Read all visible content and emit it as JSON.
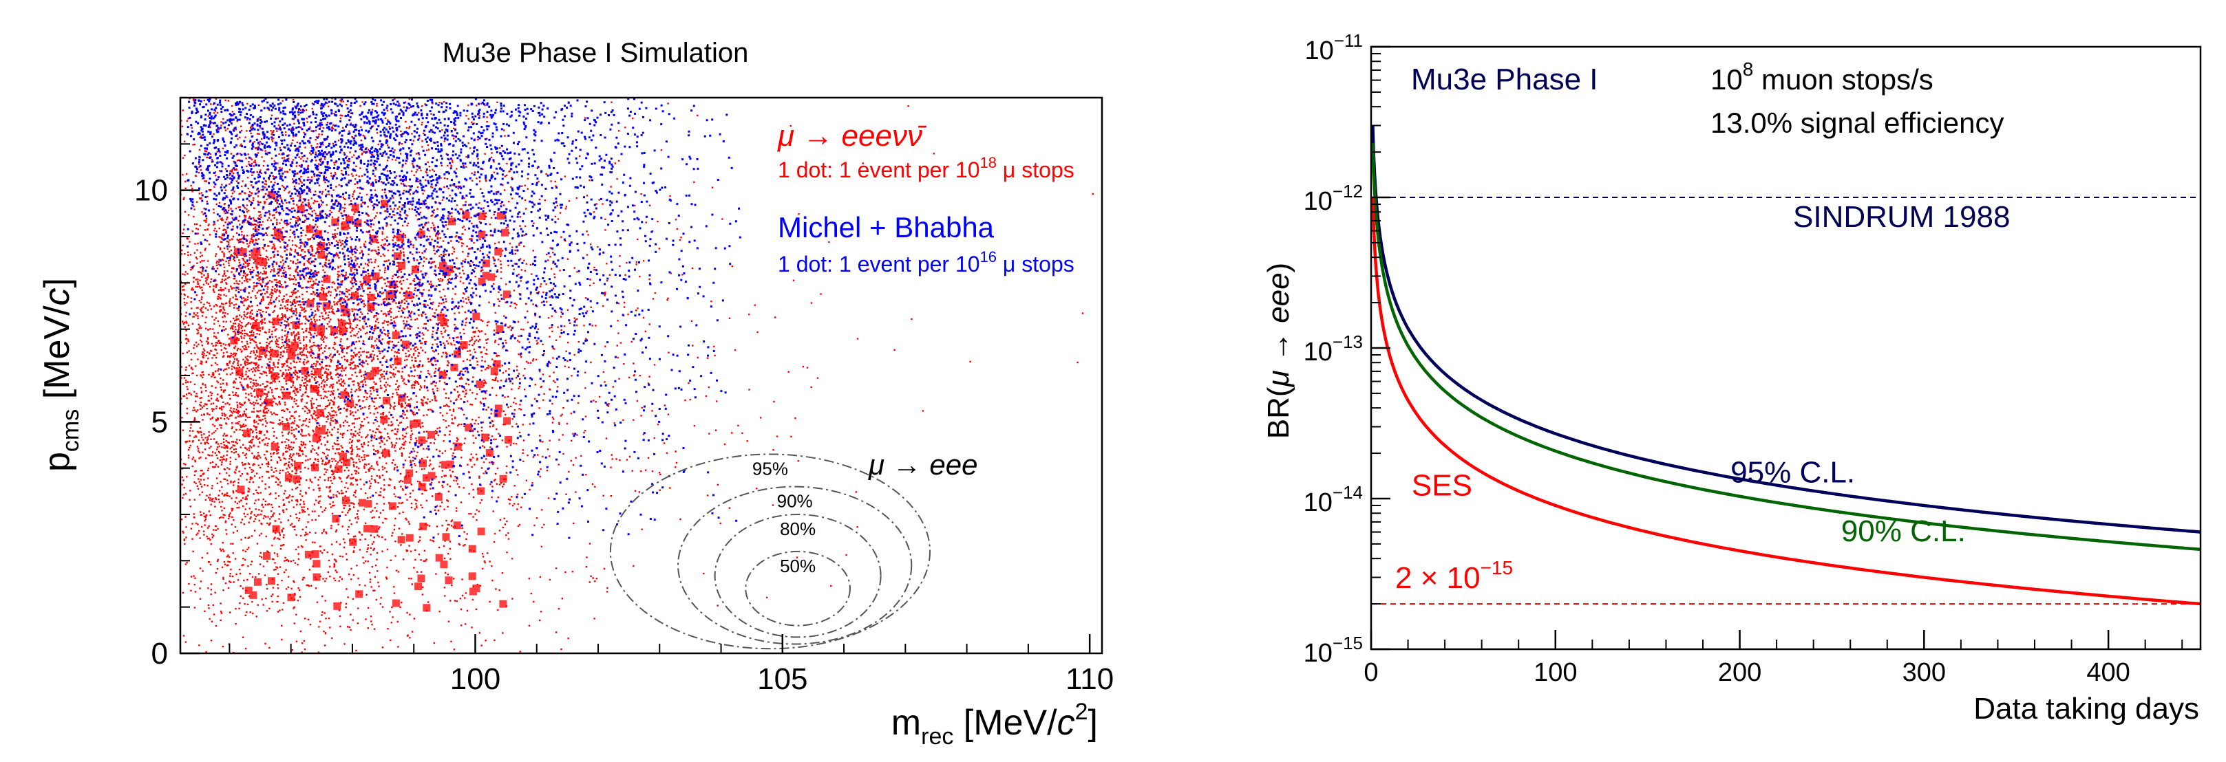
{
  "chart_data": [
    {
      "type": "scatter",
      "title": "Mu3e Phase I Simulation",
      "xlabel": {
        "main": "m",
        "sub": "rec",
        "unit_open": " [MeV/",
        "unit_c": "c",
        "unit_sup": "2",
        "unit_close": "]"
      },
      "ylabel": {
        "main": "p",
        "sub": "cms",
        "unit_open": " [MeV/",
        "unit_c": "c",
        "unit_close": "]"
      },
      "xlim": [
        95.2,
        110.2
      ],
      "ylim": [
        0,
        12
      ],
      "xticks": [
        100,
        105,
        110
      ],
      "xtick_labels": [
        "100",
        "105",
        "110"
      ],
      "yticks": [
        0,
        5,
        10
      ],
      "ytick_labels": [
        "0",
        "5",
        "10"
      ],
      "series": [
        {
          "name": "background-internal-conversion",
          "color": "#ff0000",
          "label_main": "μ → eeeνν̄",
          "label_note_pre": "1 dot: 1 event per 10",
          "label_note_sup": "18",
          "label_note_post": " μ stops",
          "cluster": {
            "x_center": 96.5,
            "y_center": 6.5,
            "x_spread": 2.2,
            "y_spread": 2.8
          }
        },
        {
          "name": "background-michel-bhabha",
          "color": "#0000ff",
          "label_main": "Michel + Bhabha",
          "label_note_pre": "1 dot: 1 event per 10",
          "label_note_sup": "16",
          "label_note_post": " μ stops",
          "cluster": {
            "x_center": 98.5,
            "y_center": 10.0,
            "x_spread": 3.0,
            "y_spread": 2.0
          }
        }
      ],
      "signal": {
        "label": "μ → eee",
        "contours": [
          {
            "level": "50%",
            "x_range": [
              104.4,
              106.1
            ],
            "y_range": [
              0.6,
              2.2
            ]
          },
          {
            "level": "80%",
            "x_range": [
              103.9,
              106.6
            ],
            "y_range": [
              0.35,
              3.0
            ]
          },
          {
            "level": "90%",
            "x_range": [
              103.3,
              107.1
            ],
            "y_range": [
              0.2,
              3.6
            ]
          },
          {
            "level": "95%",
            "x_range": [
              102.2,
              107.4
            ],
            "y_range": [
              0.1,
              4.3
            ]
          }
        ]
      }
    },
    {
      "type": "line",
      "yscale": "log",
      "xlabel": "Data taking days",
      "ylabel_pre": "BR(",
      "ylabel_ital": "μ → eee",
      "ylabel_post": ")",
      "xlim": [
        0,
        450
      ],
      "ylim": [
        1e-15,
        1e-11
      ],
      "xticks": [
        0,
        100,
        200,
        300,
        400
      ],
      "xtick_labels": [
        "0",
        "100",
        "200",
        "300",
        "400"
      ],
      "yticks_exp": [
        -11,
        -12,
        -13,
        -14,
        -15
      ],
      "ytick_base": "10",
      "ytick_exp_labels": [
        "−11",
        "−12",
        "−13",
        "−14",
        "−15"
      ],
      "annotations": {
        "experiment": "Mu3e Phase I",
        "rate_pre": "10",
        "rate_sup": "8",
        "rate_post": " muon stops/s",
        "efficiency": "13.0% signal efficiency",
        "sindrum": "SINDRUM 1988",
        "target_pre": "2 × 10",
        "target_sup": "−15"
      },
      "reference_lines": [
        {
          "name": "SINDRUM 1988",
          "y": 1e-12,
          "color": "#000055",
          "style": "dashed"
        },
        {
          "name": "target",
          "y": 2e-15,
          "color": "#ff0000",
          "style": "dashed"
        }
      ],
      "series": [
        {
          "name": "95% C.L.",
          "color": "#00005a",
          "value_at_450": 6e-15,
          "label_x": 195,
          "label_y": 1.28e-14
        },
        {
          "name": "90% C.L.",
          "color": "#006400",
          "value_at_450": 4.6e-15,
          "label_x": 255,
          "label_y": 5.2e-15
        },
        {
          "name": "SES",
          "color": "#ff0000",
          "value_at_450": 2e-15,
          "label_x": 22,
          "label_y": 1.05e-14
        }
      ]
    }
  ]
}
